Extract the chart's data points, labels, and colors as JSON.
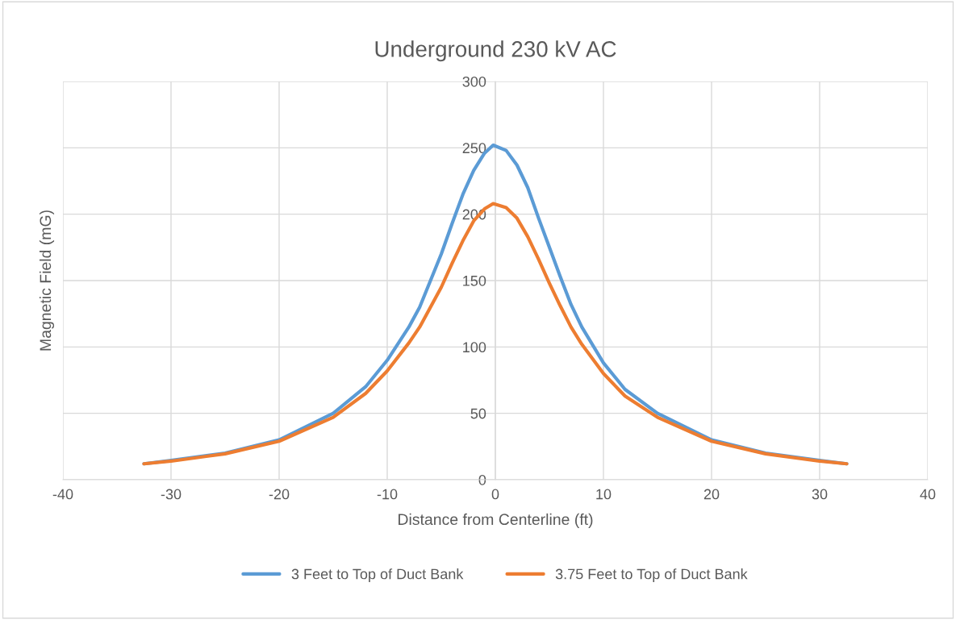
{
  "chart_data": {
    "type": "line",
    "title": "Underground 230 kV AC",
    "xlabel": "Distance from Centerline (ft)",
    "ylabel": "Magnetic Field (mG)",
    "series": [
      {
        "name": "3 Feet to Top of Duct Bank",
        "color": "#5b9bd5",
        "x": [
          -32.5,
          -30,
          -25,
          -20,
          -15,
          -12,
          -10,
          -8,
          -7,
          -6,
          -5,
          -4,
          -3,
          -2,
          -1,
          -0.2,
          1,
          2,
          3,
          4,
          5,
          6,
          7,
          8,
          10,
          12,
          15,
          20,
          25,
          30,
          32.5
        ],
        "values": [
          12,
          14.5,
          20,
          30,
          50,
          70,
          90,
          115,
          130,
          150,
          170,
          193,
          215,
          233,
          246,
          252,
          248,
          237,
          220,
          197,
          175,
          153,
          132,
          115,
          88,
          68,
          50,
          30,
          20,
          14.5,
          12
        ]
      },
      {
        "name": "3.75 Feet to Top of Duct Bank",
        "color": "#ed7d31",
        "x": [
          -32.5,
          -30,
          -25,
          -20,
          -15,
          -12,
          -10,
          -8,
          -7,
          -6,
          -5,
          -4,
          -3,
          -2,
          -1,
          -0.2,
          1,
          2,
          3,
          4,
          5,
          6,
          7,
          8,
          10,
          12,
          15,
          20,
          25,
          30,
          32.5
        ],
        "values": [
          12,
          14,
          19.5,
          29,
          47,
          65,
          82,
          103,
          115,
          130,
          145,
          163,
          180,
          195,
          204,
          208,
          205,
          197,
          183,
          166,
          148,
          131,
          115,
          102,
          80,
          63,
          47,
          29,
          19.5,
          14,
          12
        ]
      }
    ],
    "xlim": [
      -40,
      40
    ],
    "xticks": [
      -40,
      -30,
      -20,
      -10,
      0,
      10,
      20,
      30,
      40
    ],
    "ylim": [
      0,
      300
    ],
    "yticks": [
      0,
      50,
      100,
      150,
      200,
      250,
      300
    ],
    "grid": true,
    "legend": "bottom",
    "marker": "none",
    "line_style": "solid"
  }
}
